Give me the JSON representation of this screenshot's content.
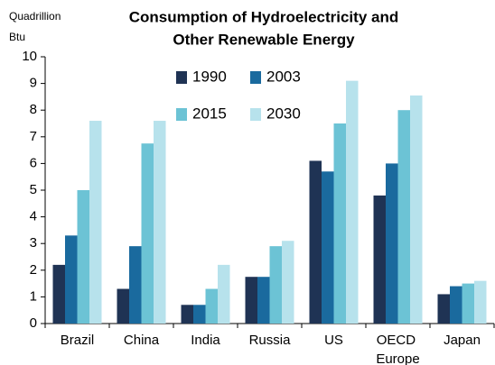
{
  "chart_data": {
    "type": "bar",
    "title": [
      "Consumption of Hydroelectricity and",
      "Other Renewable Energy"
    ],
    "y_label": [
      "Quadrillion",
      "Btu"
    ],
    "categories": [
      "Brazil",
      "China",
      "India",
      "Russia",
      "US",
      "OECD Europe",
      "Japan"
    ],
    "series": [
      {
        "name": "1990",
        "color": "#1f3354",
        "values": [
          2.2,
          1.3,
          0.7,
          1.75,
          6.1,
          4.8,
          1.1
        ]
      },
      {
        "name": "2003",
        "color": "#1a6a9e",
        "values": [
          3.3,
          2.9,
          0.7,
          1.75,
          5.7,
          6.0,
          1.4
        ]
      },
      {
        "name": "2015",
        "color": "#6cc3d5",
        "values": [
          5.0,
          6.75,
          1.3,
          2.9,
          7.5,
          8.0,
          1.5
        ]
      },
      {
        "name": "2030",
        "color": "#b7e2ec",
        "values": [
          7.6,
          7.6,
          2.2,
          3.1,
          9.1,
          8.55,
          1.6
        ]
      }
    ],
    "ylim": [
      0,
      10
    ],
    "yticks": [
      0,
      1,
      2,
      3,
      4,
      5,
      6,
      7,
      8,
      9,
      10
    ],
    "grid": false,
    "legend": "top"
  }
}
